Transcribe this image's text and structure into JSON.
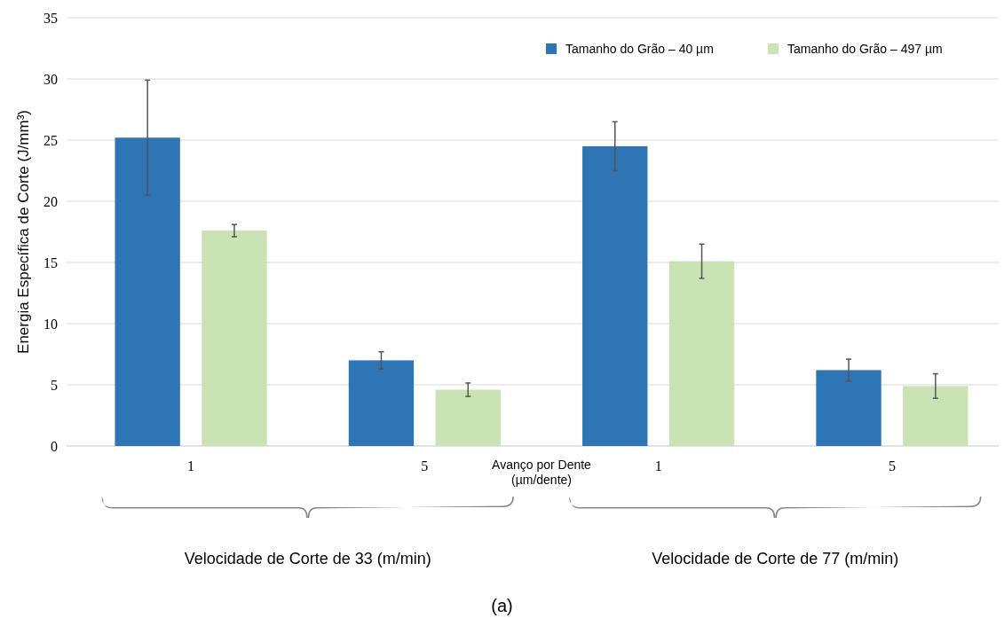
{
  "chart_data": {
    "type": "bar",
    "ylabel": "Energia Específica de Corte (J/mm³)",
    "xlabel": "Avanço por Dente\n(µm/dente)",
    "categories": [
      "1",
      "5",
      "1",
      "5"
    ],
    "series": [
      {
        "name": "Tamanho do Grão – 40 µm",
        "color": "#2e75b6",
        "values": [
          25.2,
          7.0,
          24.5,
          6.2
        ],
        "errors": [
          4.7,
          0.7,
          2.0,
          0.9
        ]
      },
      {
        "name": "Tamanho do Grão – 497 µm",
        "color": "#c9e3b5",
        "values": [
          17.6,
          4.6,
          15.1,
          4.9
        ],
        "errors": [
          0.5,
          0.55,
          1.4,
          1.0
        ]
      }
    ],
    "ylim": [
      0,
      35
    ],
    "yticks": [
      0,
      5,
      10,
      15,
      20,
      25,
      30,
      35
    ],
    "grid": "y",
    "legend": "top right",
    "annotations": [
      "Velocidade de Corte de 33 (m/min)",
      "Velocidade de Corte de 77 (m/min)",
      "(a)"
    ]
  }
}
